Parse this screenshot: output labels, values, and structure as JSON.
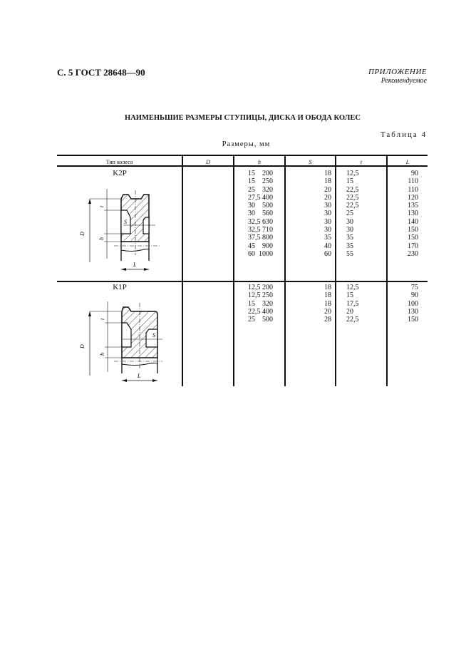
{
  "header": "С. 5 ГОСТ 28648—90",
  "appendix": {
    "label": "ПРИЛОЖЕНИЕ",
    "status": "Рекомендуемое"
  },
  "title": "НАИМЕНЬШИЕ РАЗМЕРЫ СТУПИЦЫ, ДИСКА И ОБОДА КОЛЕС",
  "table_number": "Таблица 4",
  "units": "Размеры, мм",
  "table": {
    "columns": [
      "Тип колеса",
      "D",
      "h",
      "S",
      "t",
      "L"
    ],
    "groups": [
      {
        "type": "K2P",
        "dims": {
          "t": "t",
          "D": "D",
          "S": "S",
          "h": "h",
          "L": "L"
        },
        "D": [
          "200",
          "250",
          "320",
          "400",
          "500",
          "560",
          "630",
          "710",
          "800",
          "900",
          "1000"
        ],
        "h": [
          "15",
          "15",
          "25",
          "27,5",
          "30",
          "30",
          "32,5",
          "32,5",
          "37,5",
          "45",
          "60"
        ],
        "S": [
          "18",
          "18",
          "20",
          "20",
          "30",
          "30",
          "30",
          "30",
          "35",
          "40",
          "60"
        ],
        "t": [
          "12,5",
          "15",
          "22,5",
          "22,5",
          "22,5",
          "25",
          "30",
          "30",
          "35",
          "35",
          "55"
        ],
        "L": [
          "90",
          "110",
          "110",
          "120",
          "135",
          "130",
          "140",
          "150",
          "150",
          "170",
          "230"
        ]
      },
      {
        "type": "K1P",
        "dims": {
          "t": "t",
          "D": "D",
          "S": "S",
          "h": "h",
          "L": "L"
        },
        "D": [
          "200",
          "250",
          "320",
          "400",
          "500"
        ],
        "h": [
          "12,5",
          "12,5",
          "15",
          "22,5",
          "25"
        ],
        "S": [
          "18",
          "18",
          "18",
          "20",
          "28"
        ],
        "t": [
          "12,5",
          "15",
          "17,5",
          "20",
          "22,5"
        ],
        "L": [
          "75",
          "90",
          "100",
          "130",
          "150"
        ]
      }
    ]
  }
}
